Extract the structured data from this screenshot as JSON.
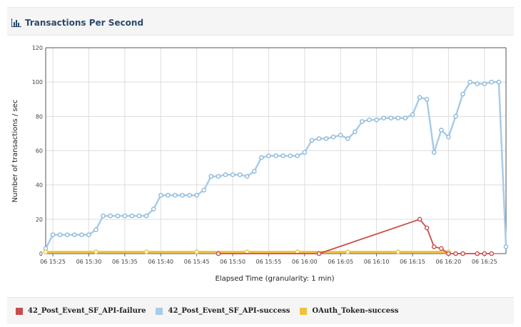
{
  "panel": {
    "title": "Transactions Per Second",
    "icon": "bar-chart-icon"
  },
  "colors": {
    "failure": "#c94b4b",
    "success": "#a8cce8",
    "success_marker": "#8db9dc",
    "oauth": "#f0c23c",
    "grid": "#dddddd"
  },
  "chart_data": {
    "type": "line",
    "xlabel": "Elapsed Time (granularity: 1 min)",
    "ylabel": "Number of transactions / sec",
    "ylim": [
      0,
      120
    ],
    "yticks": [
      0,
      20,
      40,
      60,
      80,
      100,
      120
    ],
    "x_unit": "minute",
    "xlim": [
      "06 15:24",
      "06 16:28"
    ],
    "xticks": [
      "06 15:25",
      "06 15:30",
      "06 15:35",
      "06 15:40",
      "06 15:45",
      "06 15:50",
      "06 15:55",
      "06 16:00",
      "06 16:05",
      "06 16:10",
      "06 16:15",
      "06 16:20",
      "06 16:25"
    ],
    "grid": true,
    "legend_position": "bottom",
    "series": [
      {
        "name": "42_Post_Event_SF_API-failure",
        "color": "#c94b4b",
        "x": [
          "06 15:48",
          "06 16:02",
          "06 16:16",
          "06 16:17",
          "06 16:18",
          "06 16:19",
          "06 16:20",
          "06 16:21",
          "06 16:22",
          "06 16:24",
          "06 16:25",
          "06 16:26"
        ],
        "y": [
          0,
          0,
          20,
          15,
          4,
          3,
          0,
          0,
          0,
          0,
          0,
          0
        ]
      },
      {
        "name": "42_Post_Event_SF_API-success",
        "color": "#a8cce8",
        "x": [
          "06 15:24",
          "06 15:25",
          "06 15:26",
          "06 15:27",
          "06 15:28",
          "06 15:29",
          "06 15:30",
          "06 15:31",
          "06 15:32",
          "06 15:33",
          "06 15:34",
          "06 15:35",
          "06 15:36",
          "06 15:37",
          "06 15:38",
          "06 15:39",
          "06 15:40",
          "06 15:41",
          "06 15:42",
          "06 15:43",
          "06 15:44",
          "06 15:45",
          "06 15:46",
          "06 15:47",
          "06 15:48",
          "06 15:49",
          "06 15:50",
          "06 15:51",
          "06 15:52",
          "06 15:53",
          "06 15:54",
          "06 15:55",
          "06 15:56",
          "06 15:57",
          "06 15:58",
          "06 15:59",
          "06 16:00",
          "06 16:01",
          "06 16:02",
          "06 16:03",
          "06 16:04",
          "06 16:05",
          "06 16:06",
          "06 16:07",
          "06 16:08",
          "06 16:09",
          "06 16:10",
          "06 16:11",
          "06 16:12",
          "06 16:13",
          "06 16:14",
          "06 16:15",
          "06 16:16",
          "06 16:17",
          "06 16:18",
          "06 16:19",
          "06 16:20",
          "06 16:21",
          "06 16:22",
          "06 16:23",
          "06 16:24",
          "06 16:25",
          "06 16:26",
          "06 16:27",
          "06 16:28"
        ],
        "y": [
          3,
          11,
          11,
          11,
          11,
          11,
          11,
          14,
          22,
          22,
          22,
          22,
          22,
          22,
          22,
          26,
          34,
          34,
          34,
          34,
          34,
          34,
          37,
          45,
          45,
          46,
          46,
          46,
          45,
          48,
          56,
          57,
          57,
          57,
          57,
          57,
          59,
          66,
          67,
          67,
          68,
          69,
          67,
          71,
          77,
          78,
          78,
          79,
          79,
          79,
          79,
          81,
          91,
          90,
          59,
          72,
          68,
          80,
          93,
          100,
          99,
          99,
          100,
          100,
          4
        ]
      },
      {
        "name": "OAuth_Token-success",
        "color": "#f0c23c",
        "x": [
          "06 15:24",
          "06 15:31",
          "06 15:38",
          "06 15:45",
          "06 15:52",
          "06 15:59",
          "06 16:06",
          "06 16:13",
          "06 16:20"
        ],
        "y": [
          1,
          1,
          1,
          1,
          1,
          1,
          1,
          1,
          1
        ]
      }
    ]
  }
}
